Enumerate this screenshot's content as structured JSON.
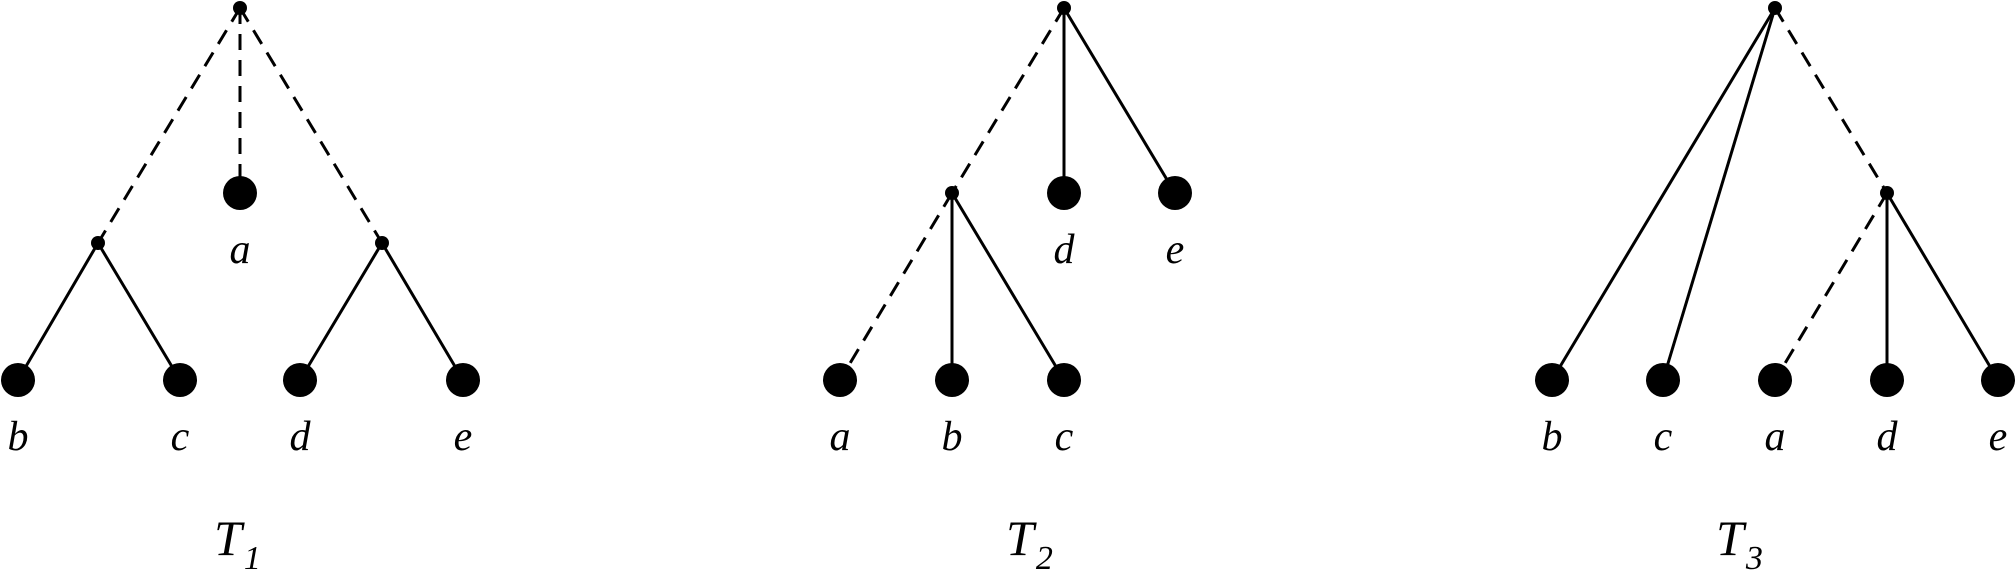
{
  "trees": [
    {
      "title": "T",
      "subscript": "1",
      "nodes": [
        {
          "id": "r",
          "kind": "inner"
        },
        {
          "id": "u",
          "kind": "inner"
        },
        {
          "id": "v",
          "kind": "inner"
        },
        {
          "id": "a",
          "kind": "leaf",
          "label": "a"
        },
        {
          "id": "b",
          "kind": "leaf",
          "label": "b"
        },
        {
          "id": "c",
          "kind": "leaf",
          "label": "c"
        },
        {
          "id": "d",
          "kind": "leaf",
          "label": "d"
        },
        {
          "id": "e",
          "kind": "leaf",
          "label": "e"
        }
      ],
      "edges": [
        {
          "from": "r",
          "to": "u",
          "style": "dashed"
        },
        {
          "from": "r",
          "to": "a",
          "style": "dashed"
        },
        {
          "from": "r",
          "to": "v",
          "style": "dashed"
        },
        {
          "from": "u",
          "to": "b",
          "style": "solid"
        },
        {
          "from": "u",
          "to": "c",
          "style": "solid"
        },
        {
          "from": "v",
          "to": "d",
          "style": "solid"
        },
        {
          "from": "v",
          "to": "e",
          "style": "solid"
        }
      ]
    },
    {
      "title": "T",
      "subscript": "2",
      "nodes": [
        {
          "id": "r",
          "kind": "inner"
        },
        {
          "id": "u",
          "kind": "inner"
        },
        {
          "id": "d",
          "kind": "leaf",
          "label": "d"
        },
        {
          "id": "e",
          "kind": "leaf",
          "label": "e"
        },
        {
          "id": "a",
          "kind": "leaf",
          "label": "a"
        },
        {
          "id": "b",
          "kind": "leaf",
          "label": "b"
        },
        {
          "id": "c",
          "kind": "leaf",
          "label": "c"
        }
      ],
      "edges": [
        {
          "from": "r",
          "to": "u",
          "style": "dashed"
        },
        {
          "from": "r",
          "to": "d",
          "style": "solid"
        },
        {
          "from": "r",
          "to": "e",
          "style": "solid"
        },
        {
          "from": "u",
          "to": "a",
          "style": "dashed"
        },
        {
          "from": "u",
          "to": "b",
          "style": "solid"
        },
        {
          "from": "u",
          "to": "c",
          "style": "solid"
        }
      ]
    },
    {
      "title": "T",
      "subscript": "3",
      "nodes": [
        {
          "id": "r",
          "kind": "inner"
        },
        {
          "id": "u",
          "kind": "inner"
        },
        {
          "id": "b",
          "kind": "leaf",
          "label": "b"
        },
        {
          "id": "c",
          "kind": "leaf",
          "label": "c"
        },
        {
          "id": "a",
          "kind": "leaf",
          "label": "a"
        },
        {
          "id": "d",
          "kind": "leaf",
          "label": "d"
        },
        {
          "id": "e",
          "kind": "leaf",
          "label": "e"
        }
      ],
      "edges": [
        {
          "from": "r",
          "to": "b",
          "style": "solid"
        },
        {
          "from": "r",
          "to": "c",
          "style": "solid"
        },
        {
          "from": "r",
          "to": "u",
          "style": "dashed"
        },
        {
          "from": "u",
          "to": "a",
          "style": "dashed"
        },
        {
          "from": "u",
          "to": "d",
          "style": "solid"
        },
        {
          "from": "u",
          "to": "e",
          "style": "solid"
        }
      ]
    }
  ]
}
